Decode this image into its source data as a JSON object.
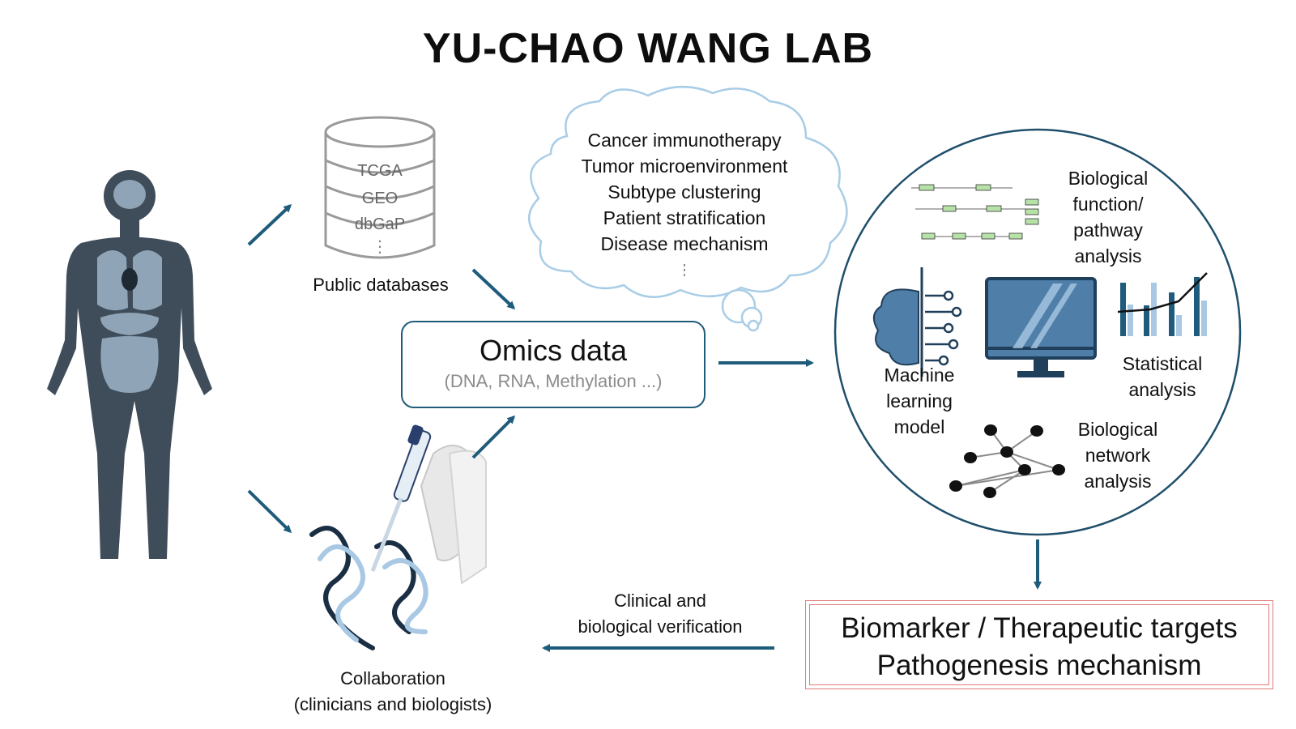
{
  "title": "YU-CHAO WANG LAB",
  "databases": {
    "items": [
      "TCGA",
      "GEO",
      "dbGaP"
    ],
    "more": "⋮",
    "label": "Public databases"
  },
  "cloud": {
    "items": [
      "Cancer immunotherapy",
      "Tumor microenvironment",
      "Subtype clustering",
      "Patient stratification",
      "Disease mechanism"
    ],
    "more": "⋮"
  },
  "omics": {
    "title": "Omics data",
    "subtitle": "(DNA, RNA, Methylation ...)"
  },
  "analysis": {
    "pathway": "Biological function/ pathway analysis",
    "pathway_lines": [
      "Biological",
      "function/",
      "pathway",
      "analysis"
    ],
    "ml_lines": [
      "Machine",
      "learning",
      "model"
    ],
    "stats_lines": [
      "Statistical",
      "analysis"
    ],
    "network_lines": [
      "Biological",
      "network",
      "analysis"
    ]
  },
  "results": {
    "line1": "Biomarker / Therapeutic targets",
    "line2": "Pathogenesis mechanism"
  },
  "verification": {
    "lines": [
      "Clinical and",
      "biological verification"
    ]
  },
  "collaboration": {
    "lines": [
      "Collaboration",
      "(clinicians and biologists)"
    ]
  },
  "colors": {
    "arrow": "#1f5b7a",
    "body": "#3f4d5a",
    "organs": "#8fa5b7",
    "cloud_stroke": "#a9cde6",
    "circle_stroke": "#1f4f6b",
    "bar_dark": "#1f5b7a",
    "bar_light": "#a8c8e4",
    "result_border": "#e07b7b"
  }
}
